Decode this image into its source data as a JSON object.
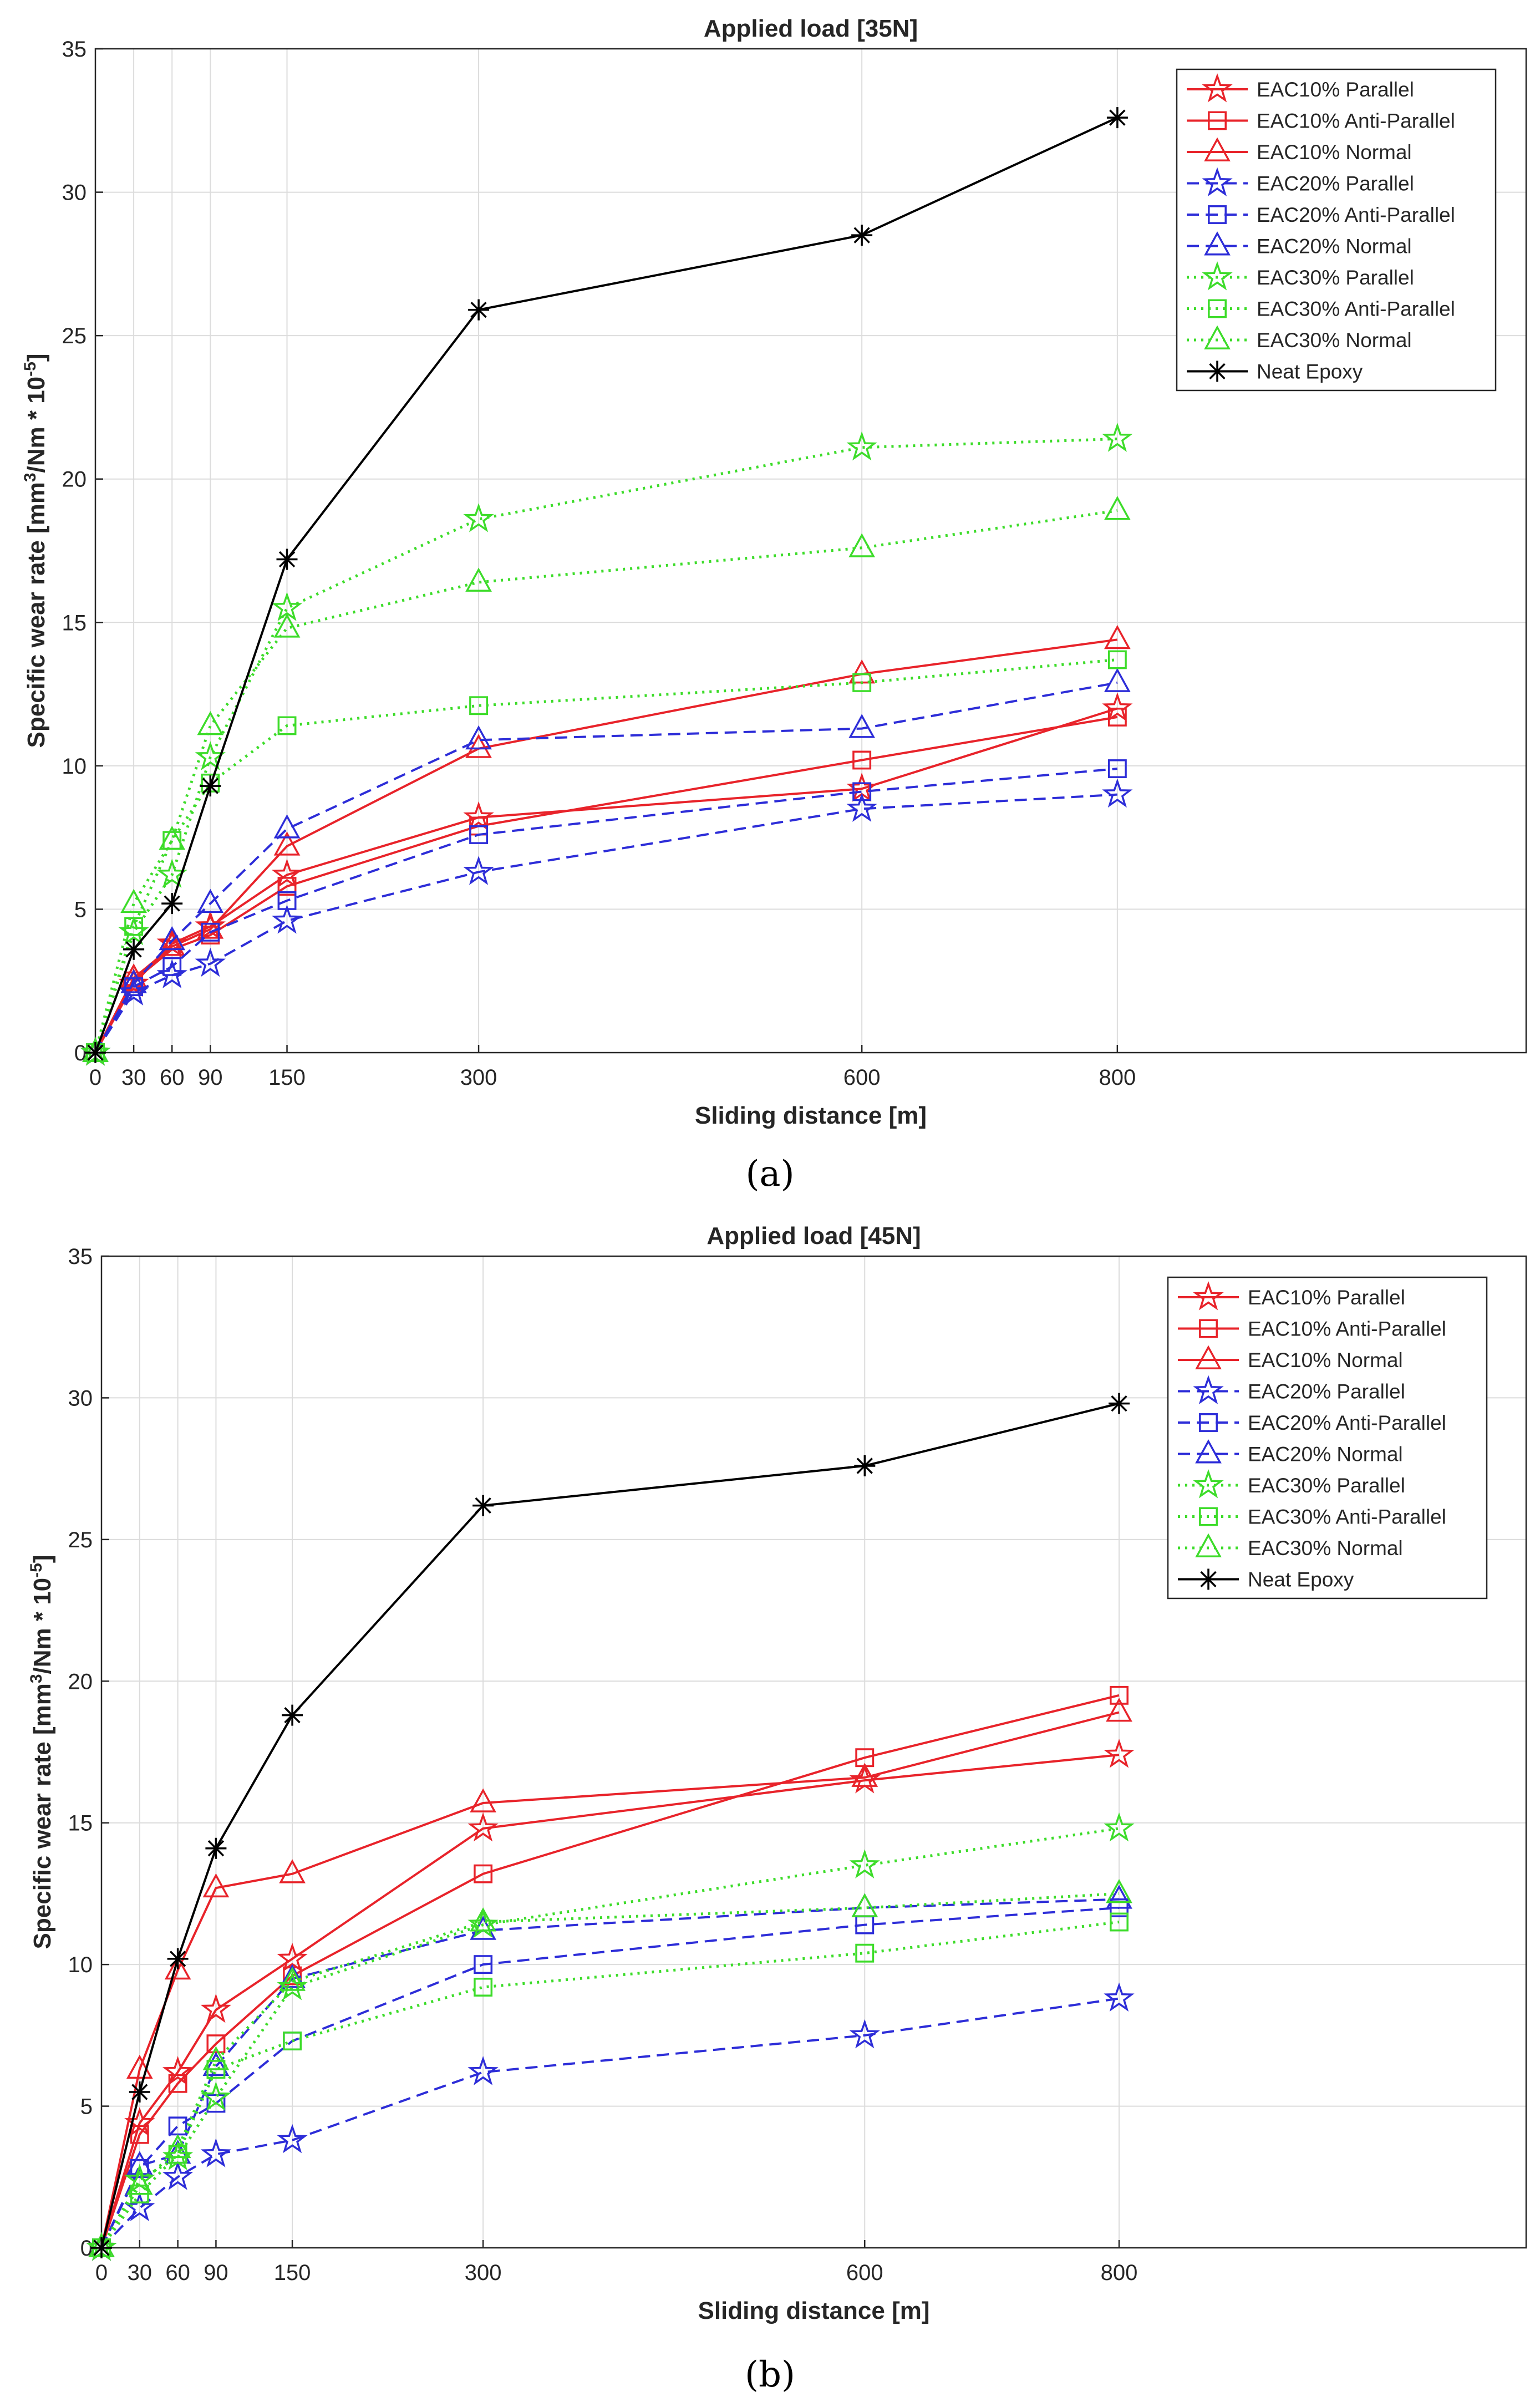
{
  "chart_data": [
    {
      "type": "line",
      "title": "Applied load [35N]",
      "xlabel": "Sliding distance [m]",
      "ylabel": "Specific wear rate [mm³/Nm * 10⁻⁵]",
      "ylabel_parts": [
        "Specific wear rate [mm",
        "3",
        "/Nm * 10",
        "-5",
        "]"
      ],
      "xlim": [
        0,
        1120
      ],
      "ylim": [
        0,
        35
      ],
      "xticks": [
        0,
        30,
        60,
        90,
        150,
        300,
        600,
        800
      ],
      "yticks": [
        0,
        5,
        10,
        15,
        20,
        25,
        30,
        35
      ],
      "grid": true,
      "legend_position": "top-right",
      "x": [
        0,
        30,
        60,
        90,
        150,
        300,
        600,
        800
      ],
      "series": [
        {
          "name": "EAC10% Parallel",
          "color": "#e8232a",
          "dash": "solid",
          "marker": "star",
          "values": [
            0,
            2.4,
            3.8,
            4.4,
            6.2,
            8.2,
            9.2,
            12.0
          ]
        },
        {
          "name": "EAC10% Anti-Parallel",
          "color": "#e8232a",
          "dash": "solid",
          "marker": "square",
          "values": [
            0,
            2.5,
            3.6,
            4.1,
            5.8,
            7.9,
            10.2,
            11.7
          ]
        },
        {
          "name": "EAC10% Normal",
          "color": "#e8232a",
          "dash": "solid",
          "marker": "triangle",
          "values": [
            0,
            2.6,
            3.7,
            4.3,
            7.2,
            10.6,
            13.2,
            14.4
          ]
        },
        {
          "name": "EAC20% Parallel",
          "color": "#2d2dd8",
          "dash": "dashed",
          "marker": "star",
          "values": [
            0,
            2.1,
            2.7,
            3.1,
            4.6,
            6.3,
            8.5,
            9.0
          ]
        },
        {
          "name": "EAC20% Anti-Parallel",
          "color": "#2d2dd8",
          "dash": "dashed",
          "marker": "square",
          "values": [
            0,
            2.3,
            3.0,
            4.2,
            5.3,
            7.6,
            9.1,
            9.9
          ]
        },
        {
          "name": "EAC20% Normal",
          "color": "#2d2dd8",
          "dash": "dashed",
          "marker": "triangle",
          "values": [
            0,
            2.4,
            3.9,
            5.2,
            7.8,
            10.9,
            11.3,
            12.9
          ]
        },
        {
          "name": "EAC30% Parallel",
          "color": "#3ddc2a",
          "dash": "dotted",
          "marker": "star",
          "values": [
            0,
            4.2,
            6.2,
            10.3,
            15.5,
            18.6,
            21.1,
            21.4
          ]
        },
        {
          "name": "EAC30% Anti-Parallel",
          "color": "#3ddc2a",
          "dash": "dotted",
          "marker": "square",
          "values": [
            0,
            4.4,
            7.4,
            9.4,
            11.4,
            12.1,
            12.9,
            13.7
          ]
        },
        {
          "name": "EAC30% Normal",
          "color": "#3ddc2a",
          "dash": "dotted",
          "marker": "triangle",
          "values": [
            0,
            5.2,
            7.4,
            11.4,
            14.8,
            16.4,
            17.6,
            18.9
          ]
        },
        {
          "name": "Neat Epoxy",
          "color": "#000000",
          "dash": "solid",
          "marker": "asterisk",
          "values": [
            0,
            3.6,
            5.2,
            9.3,
            17.2,
            25.9,
            28.5,
            32.6
          ]
        }
      ]
    },
    {
      "type": "line",
      "title": "Applied load [45N]",
      "xlabel": "Sliding distance [m]",
      "ylabel": "Specific wear rate [mm³/Nm * 10⁻⁵]",
      "ylabel_parts": [
        "Specific wear rate [mm",
        "3",
        "/Nm * 10",
        "-5",
        "]"
      ],
      "xlim": [
        0,
        1120
      ],
      "ylim": [
        0,
        35
      ],
      "xticks": [
        0,
        30,
        60,
        90,
        150,
        300,
        600,
        800
      ],
      "yticks": [
        0,
        5,
        10,
        15,
        20,
        25,
        30,
        35
      ],
      "grid": true,
      "legend_position": "top-right",
      "x": [
        0,
        30,
        60,
        90,
        150,
        300,
        600,
        800
      ],
      "series": [
        {
          "name": "EAC10% Parallel",
          "color": "#e8232a",
          "dash": "solid",
          "marker": "star",
          "values": [
            0,
            4.4,
            6.2,
            8.4,
            10.2,
            14.8,
            16.5,
            17.4
          ]
        },
        {
          "name": "EAC10% Anti-Parallel",
          "color": "#e8232a",
          "dash": "solid",
          "marker": "square",
          "values": [
            0,
            4.0,
            5.8,
            7.2,
            9.6,
            13.2,
            17.3,
            19.5
          ]
        },
        {
          "name": "EAC10% Normal",
          "color": "#e8232a",
          "dash": "solid",
          "marker": "triangle",
          "values": [
            0,
            6.3,
            9.8,
            12.7,
            13.2,
            15.7,
            16.6,
            18.9
          ]
        },
        {
          "name": "EAC20% Parallel",
          "color": "#2d2dd8",
          "dash": "dashed",
          "marker": "star",
          "values": [
            0,
            1.4,
            2.5,
            3.3,
            3.8,
            6.2,
            7.5,
            8.8
          ]
        },
        {
          "name": "EAC20% Anti-Parallel",
          "color": "#2d2dd8",
          "dash": "dashed",
          "marker": "square",
          "values": [
            0,
            2.8,
            4.3,
            5.1,
            7.3,
            10.0,
            11.4,
            12.0
          ]
        },
        {
          "name": "EAC20% Normal",
          "color": "#2d2dd8",
          "dash": "dashed",
          "marker": "triangle",
          "values": [
            0,
            2.9,
            3.3,
            6.4,
            9.5,
            11.2,
            12.0,
            12.3
          ]
        },
        {
          "name": "EAC30% Parallel",
          "color": "#3ddc2a",
          "dash": "dotted",
          "marker": "star",
          "values": [
            0,
            2.4,
            3.2,
            5.3,
            9.2,
            11.4,
            13.5,
            14.8
          ]
        },
        {
          "name": "EAC30% Anti-Parallel",
          "color": "#3ddc2a",
          "dash": "dotted",
          "marker": "square",
          "values": [
            0,
            1.9,
            3.3,
            6.3,
            7.3,
            9.2,
            10.4,
            11.5
          ]
        },
        {
          "name": "EAC30% Normal",
          "color": "#3ddc2a",
          "dash": "dotted",
          "marker": "triangle",
          "values": [
            0,
            2.2,
            3.5,
            6.6,
            9.4,
            11.5,
            12.0,
            12.5
          ]
        },
        {
          "name": "Neat Epoxy",
          "color": "#000000",
          "dash": "solid",
          "marker": "asterisk",
          "values": [
            0,
            5.5,
            10.2,
            14.1,
            18.8,
            26.2,
            27.6,
            29.8
          ]
        }
      ]
    }
  ],
  "figure_labels": [
    "(a)",
    "(b)"
  ]
}
